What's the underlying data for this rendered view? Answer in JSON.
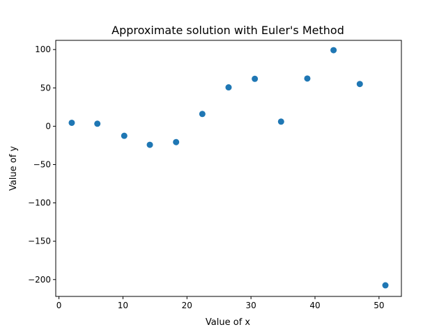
{
  "chart_data": {
    "type": "scatter",
    "title": "Approximate solution with Euler's Method",
    "xlabel": "Value of x",
    "ylabel": "Value of y",
    "xlim": [
      -0.5,
      53.5
    ],
    "ylim": [
      -222,
      112
    ],
    "xticks": [
      0,
      10,
      20,
      30,
      40,
      50
    ],
    "xtick_labels": [
      "0",
      "10",
      "20",
      "30",
      "40",
      "50"
    ],
    "yticks": [
      100,
      50,
      0,
      -50,
      -100,
      -150,
      -200
    ],
    "ytick_labels": [
      "100",
      "50",
      "0",
      "−50",
      "−100",
      "−150",
      "−200"
    ],
    "grid": false,
    "marker_color": "#1f77b4",
    "series": [
      {
        "x": [
          2,
          6,
          10.2,
          14.2,
          18.3,
          22.4,
          26.5,
          30.6,
          34.7,
          38.8,
          42.9,
          47,
          51
        ],
        "y": [
          4.5,
          3.3,
          -12.5,
          -24.2,
          -20.7,
          16,
          50.7,
          61.8,
          6,
          62.2,
          99.2,
          55.1,
          -207.5
        ]
      }
    ]
  }
}
